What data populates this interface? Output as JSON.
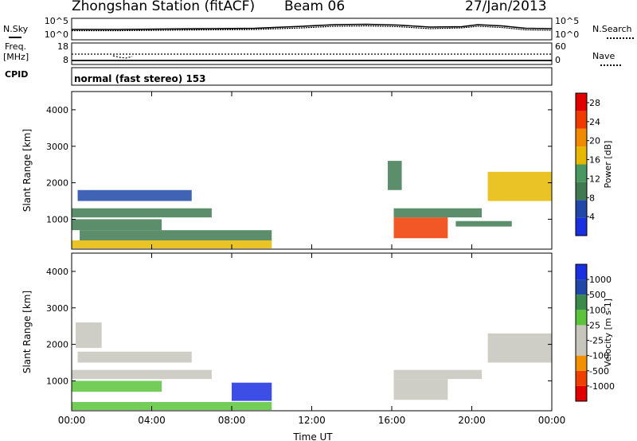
{
  "header": {
    "station": "Zhongshan Station (fitACF)",
    "beam": "Beam 06",
    "date": "27/Jan/2013"
  },
  "side_labels": {
    "nsky": "N.Sky",
    "freq": "Freq.",
    "freq_unit": "[MHz]",
    "cpid": "CPID",
    "nsearch": "N.Search",
    "nave": "Nave"
  },
  "noise_panel": {
    "left_ticks": [
      "10^5",
      "10^0"
    ],
    "right_ticks": [
      "10^5",
      "10^0"
    ]
  },
  "freq_panel": {
    "left_ticks": [
      "18",
      "8"
    ],
    "right_ticks": [
      "60",
      "0"
    ]
  },
  "cpid_text": "normal (fast stereo) 153",
  "colors": {
    "power": [
      "#1a2fe0",
      "#1f48a8",
      "#3f7a52",
      "#4a9860",
      "#e6b800",
      "#f08a00",
      "#f03a00",
      "#e00000"
    ],
    "velocity": [
      "#e00000",
      "#f04000",
      "#f39000",
      "#c6c6bc",
      "#c6c6bc",
      "#5cc43c",
      "#3a8a4a",
      "#1f48a8",
      "#1a2fe0"
    ]
  },
  "chart_data": [
    {
      "type": "heatmap",
      "title": "",
      "xlabel": "",
      "ylabel": "Slant Range [km]",
      "xlim": [
        "00:00",
        "00:00"
      ],
      "ylim": [
        180,
        4500
      ],
      "yticks": [
        "1000",
        "2000",
        "3000",
        "4000"
      ],
      "colorbar": {
        "label": "Power [dB]",
        "ticks": [
          "4",
          "8",
          "12",
          "16",
          "20",
          "24",
          "28"
        ],
        "range": [
          0,
          30
        ]
      },
      "regions": [
        {
          "t": [
            0.0,
            10.0
          ],
          "r": [
            200,
            420
          ],
          "value": 18
        },
        {
          "t": [
            0.4,
            10.0
          ],
          "r": [
            420,
            700
          ],
          "value": 10
        },
        {
          "t": [
            0.0,
            7.0
          ],
          "r": [
            1050,
            1300
          ],
          "value": 8
        },
        {
          "t": [
            0.3,
            6.0
          ],
          "r": [
            1500,
            1800
          ],
          "value": 6
        },
        {
          "t": [
            0.0,
            4.5
          ],
          "r": [
            700,
            1000
          ],
          "value": 9
        },
        {
          "t": [
            16.1,
            18.8
          ],
          "r": [
            480,
            1050
          ],
          "value": 24
        },
        {
          "t": [
            16.1,
            20.5
          ],
          "r": [
            1050,
            1300
          ],
          "value": 10
        },
        {
          "t": [
            19.2,
            22.0
          ],
          "r": [
            800,
            950
          ],
          "value": 8
        },
        {
          "t": [
            20.8,
            24.0
          ],
          "r": [
            1500,
            2300
          ],
          "value": 18
        },
        {
          "t": [
            15.8,
            16.5
          ],
          "r": [
            1800,
            2600
          ],
          "value": 9
        }
      ]
    },
    {
      "type": "heatmap",
      "title": "",
      "xlabel": "Time UT",
      "ylabel": "Slant Range [km]",
      "xlim": [
        "00:00",
        "00:00"
      ],
      "xticks": [
        "00:00",
        "04:00",
        "08:00",
        "12:00",
        "16:00",
        "20:00",
        "00:00"
      ],
      "ylim": [
        180,
        4500
      ],
      "yticks": [
        "1000",
        "2000",
        "3000",
        "4000"
      ],
      "colorbar": {
        "label": "Velocity [m s-1]",
        "ticks": [
          "1000",
          "500",
          "100",
          "25",
          "-25",
          "-100",
          "-500",
          "-1000"
        ],
        "range": [
          -1000,
          1000
        ]
      },
      "regions": [
        {
          "t": [
            0.0,
            10.0
          ],
          "r": [
            200,
            420
          ],
          "value": 150
        },
        {
          "t": [
            8.0,
            10.0
          ],
          "r": [
            450,
            950
          ],
          "value": 800
        },
        {
          "t": [
            0.0,
            7.0
          ],
          "r": [
            1050,
            1300
          ],
          "value": 0
        },
        {
          "t": [
            0.3,
            6.0
          ],
          "r": [
            1500,
            1800
          ],
          "value": 0
        },
        {
          "t": [
            0.0,
            4.5
          ],
          "r": [
            700,
            1000
          ],
          "value": 300
        },
        {
          "t": [
            16.1,
            18.8
          ],
          "r": [
            480,
            1050
          ],
          "value": -150
        },
        {
          "t": [
            16.1,
            20.5
          ],
          "r": [
            1050,
            1300
          ],
          "value": 0
        },
        {
          "t": [
            20.8,
            24.0
          ],
          "r": [
            1500,
            2300
          ],
          "value": 0
        },
        {
          "t": [
            0.2,
            1.5
          ],
          "r": [
            1900,
            2600
          ],
          "value": -150
        }
      ]
    }
  ]
}
